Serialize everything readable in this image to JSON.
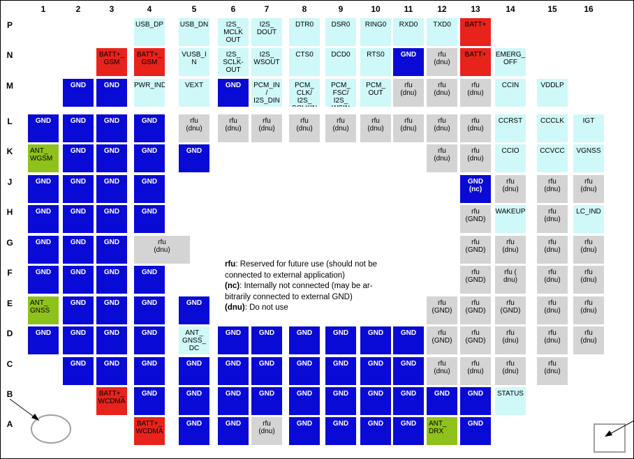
{
  "columns": [
    "1",
    "2",
    "3",
    "4",
    "5",
    "6",
    "7",
    "8",
    "9",
    "10",
    "11",
    "12",
    "13",
    "14",
    "15",
    "16"
  ],
  "rows": [
    "P",
    "N",
    "M",
    "L",
    "K",
    "J",
    "H",
    "G",
    "F",
    "E",
    "D",
    "C",
    "B",
    "A"
  ],
  "colors": {
    "gnd": "#0a0ad6",
    "batt": "#e8231b",
    "signal": "#cff8f8",
    "rfu": "#d4d4d4",
    "antenna": "#8ec21a"
  },
  "pads": [
    {
      "row": "P",
      "col": 4,
      "type": "sig",
      "label": "USB_DP"
    },
    {
      "row": "P",
      "col": 5,
      "type": "sig",
      "label": "USB_DN"
    },
    {
      "row": "P",
      "col": 6,
      "type": "sig",
      "label": "I2S_\nMCLK\nOUT"
    },
    {
      "row": "P",
      "col": 7,
      "type": "sig",
      "label": "I2S_\nDOUT"
    },
    {
      "row": "P",
      "col": 8,
      "type": "sig",
      "label": "DTR0"
    },
    {
      "row": "P",
      "col": 9,
      "type": "sig",
      "label": "DSR0"
    },
    {
      "row": "P",
      "col": 10,
      "type": "sig",
      "label": "RING0"
    },
    {
      "row": "P",
      "col": 11,
      "type": "sig",
      "label": "RXD0"
    },
    {
      "row": "P",
      "col": 12,
      "type": "sig",
      "label": "TXD0"
    },
    {
      "row": "P",
      "col": 13,
      "type": "batt",
      "label": "BATT+"
    },
    {
      "row": "N",
      "col": 3,
      "type": "batt",
      "label": "BATT+_\nGSM"
    },
    {
      "row": "N",
      "col": 4,
      "type": "batt",
      "label": "BATT+_\nGSM"
    },
    {
      "row": "N",
      "col": 5,
      "type": "sig",
      "label": "VUSB_I\nN"
    },
    {
      "row": "N",
      "col": 6,
      "type": "sig",
      "label": "I2S_\nSCLK-\nOUT"
    },
    {
      "row": "N",
      "col": 7,
      "type": "sig",
      "label": "I2S_\nWSOUT"
    },
    {
      "row": "N",
      "col": 8,
      "type": "sig",
      "label": "CTS0"
    },
    {
      "row": "N",
      "col": 9,
      "type": "sig",
      "label": "DCD0"
    },
    {
      "row": "N",
      "col": 10,
      "type": "sig",
      "label": "RTS0"
    },
    {
      "row": "N",
      "col": 11,
      "type": "gnd",
      "label": "GND"
    },
    {
      "row": "N",
      "col": 12,
      "type": "rfu",
      "label": "rfu\n(dnu)"
    },
    {
      "row": "N",
      "col": 13,
      "type": "batt",
      "label": "BATT+"
    },
    {
      "row": "N",
      "col": 14,
      "type": "sig",
      "label": "EMERG_\nOFF"
    },
    {
      "row": "M",
      "col": 2,
      "type": "gnd",
      "label": "GND"
    },
    {
      "row": "M",
      "col": 3,
      "type": "gnd",
      "label": "GND"
    },
    {
      "row": "M",
      "col": 4,
      "type": "sig",
      "label": "PWR_IND"
    },
    {
      "row": "M",
      "col": 5,
      "type": "sig",
      "label": "VEXT"
    },
    {
      "row": "M",
      "col": 6,
      "type": "gnd",
      "label": "GND"
    },
    {
      "row": "M",
      "col": 7,
      "type": "sig",
      "label": "PCM_IN\n/\nI2S_DIN"
    },
    {
      "row": "M",
      "col": 8,
      "type": "sig",
      "label": "PCM_\nCLK/\nI2S_\nSCLKIN"
    },
    {
      "row": "M",
      "col": 9,
      "type": "sig",
      "label": "PCM_\nFSC/\nI2S_\nWSIN"
    },
    {
      "row": "M",
      "col": 10,
      "type": "sig",
      "label": "PCM_\nOUT"
    },
    {
      "row": "M",
      "col": 11,
      "type": "rfu",
      "label": "rfu\n(dnu)"
    },
    {
      "row": "M",
      "col": 12,
      "type": "rfu",
      "label": "rfu\n(dnu)"
    },
    {
      "row": "M",
      "col": 13,
      "type": "rfu",
      "label": "rfu\n(dnu)"
    },
    {
      "row": "M",
      "col": 14,
      "type": "sig",
      "label": "CCIN"
    },
    {
      "row": "M",
      "col": 15,
      "type": "sig",
      "label": "VDDLP"
    },
    {
      "row": "L",
      "col": 1,
      "type": "gnd",
      "label": "GND"
    },
    {
      "row": "L",
      "col": 2,
      "type": "gnd",
      "label": "GND"
    },
    {
      "row": "L",
      "col": 3,
      "type": "gnd",
      "label": "GND"
    },
    {
      "row": "L",
      "col": 4,
      "type": "gnd",
      "label": "GND"
    },
    {
      "row": "L",
      "col": 5,
      "type": "rfu",
      "label": "rfu\n(dnu)"
    },
    {
      "row": "L",
      "col": 6,
      "type": "rfu",
      "label": "rfu\n(dnu)"
    },
    {
      "row": "L",
      "col": 7,
      "type": "rfu",
      "label": "rfu\n(dnu)"
    },
    {
      "row": "L",
      "col": 8,
      "type": "rfu",
      "label": "rfu\n(dnu)"
    },
    {
      "row": "L",
      "col": 9,
      "type": "rfu",
      "label": "rfu\n(dnu)"
    },
    {
      "row": "L",
      "col": 10,
      "type": "rfu",
      "label": "rfu\n(dnu)"
    },
    {
      "row": "L",
      "col": 11,
      "type": "rfu",
      "label": "rfu\n(dnu)"
    },
    {
      "row": "L",
      "col": 12,
      "type": "rfu",
      "label": "rfu\n(dnu)"
    },
    {
      "row": "L",
      "col": 13,
      "type": "rfu",
      "label": "rfu\n(dnu)"
    },
    {
      "row": "L",
      "col": 14,
      "type": "sig",
      "label": "CCRST"
    },
    {
      "row": "L",
      "col": 15,
      "type": "sig",
      "label": "CCCLK"
    },
    {
      "row": "L",
      "col": 16,
      "type": "sig",
      "label": "IGT"
    },
    {
      "row": "K",
      "col": 1,
      "type": "ant",
      "label": "ANT_\nWGSM"
    },
    {
      "row": "K",
      "col": 2,
      "type": "gnd",
      "label": "GND"
    },
    {
      "row": "K",
      "col": 3,
      "type": "gnd",
      "label": "GND"
    },
    {
      "row": "K",
      "col": 4,
      "type": "gnd",
      "label": "GND"
    },
    {
      "row": "K",
      "col": 5,
      "type": "gnd",
      "label": "GND"
    },
    {
      "row": "K",
      "col": 12,
      "type": "rfu",
      "label": "rfu\n(dnu)"
    },
    {
      "row": "K",
      "col": 13,
      "type": "rfu",
      "label": "rfu\n(dnu)"
    },
    {
      "row": "K",
      "col": 14,
      "type": "sig",
      "label": "CCIO"
    },
    {
      "row": "K",
      "col": 15,
      "type": "sig",
      "label": "CCVCC"
    },
    {
      "row": "K",
      "col": 16,
      "type": "sig",
      "label": "VGNSS"
    },
    {
      "row": "J",
      "col": 1,
      "type": "gnd",
      "label": "GND"
    },
    {
      "row": "J",
      "col": 2,
      "type": "gnd",
      "label": "GND"
    },
    {
      "row": "J",
      "col": 3,
      "type": "gnd",
      "label": "GND"
    },
    {
      "row": "J",
      "col": 4,
      "type": "gnd",
      "label": "GND"
    },
    {
      "row": "J",
      "col": 13,
      "type": "gnd",
      "label": "GND\n(nc)"
    },
    {
      "row": "J",
      "col": 14,
      "type": "rfu",
      "label": "rfu\n(dnu)"
    },
    {
      "row": "J",
      "col": 15,
      "type": "rfu",
      "label": "rfu\n(dnu)"
    },
    {
      "row": "J",
      "col": 16,
      "type": "rfu",
      "label": "rfu\n(dnu)"
    },
    {
      "row": "H",
      "col": 1,
      "type": "gnd",
      "label": "GND"
    },
    {
      "row": "H",
      "col": 2,
      "type": "gnd",
      "label": "GND"
    },
    {
      "row": "H",
      "col": 3,
      "type": "gnd",
      "label": "GND"
    },
    {
      "row": "H",
      "col": 4,
      "type": "gnd",
      "label": "GND"
    },
    {
      "row": "H",
      "col": 13,
      "type": "rfu",
      "label": "rfu\n(GND)"
    },
    {
      "row": "H",
      "col": 14,
      "type": "sig",
      "label": "WAKEUP"
    },
    {
      "row": "H",
      "col": 15,
      "type": "rfu",
      "label": "rfu\n(dnu)"
    },
    {
      "row": "H",
      "col": 16,
      "type": "sig",
      "label": "LC_IND"
    },
    {
      "row": "G",
      "col": 1,
      "type": "gnd",
      "label": "GND"
    },
    {
      "row": "G",
      "col": 2,
      "type": "gnd",
      "label": "GND"
    },
    {
      "row": "G",
      "col": 3,
      "type": "gnd",
      "label": "GND"
    },
    {
      "row": "G",
      "col": 4,
      "type": "rfu",
      "label": "rfu\n(dnu)",
      "wide": true
    },
    {
      "row": "G",
      "col": 13,
      "type": "rfu",
      "label": "rfu\n(GND)"
    },
    {
      "row": "G",
      "col": 14,
      "type": "rfu",
      "label": "rfu\n(dnu)"
    },
    {
      "row": "G",
      "col": 15,
      "type": "rfu",
      "label": "rfu\n(dnu)"
    },
    {
      "row": "G",
      "col": 16,
      "type": "rfu",
      "label": "rfu\n(dnu)"
    },
    {
      "row": "F",
      "col": 1,
      "type": "gnd",
      "label": "GND"
    },
    {
      "row": "F",
      "col": 2,
      "type": "gnd",
      "label": "GND"
    },
    {
      "row": "F",
      "col": 3,
      "type": "gnd",
      "label": "GND"
    },
    {
      "row": "F",
      "col": 4,
      "type": "gnd",
      "label": "GND"
    },
    {
      "row": "F",
      "col": 13,
      "type": "rfu",
      "label": "rfu\n(GND)"
    },
    {
      "row": "F",
      "col": 14,
      "type": "rfu",
      "label": "rfu (\ndnu)"
    },
    {
      "row": "F",
      "col": 15,
      "type": "rfu",
      "label": "rfu\n(dnu)"
    },
    {
      "row": "F",
      "col": 16,
      "type": "rfu",
      "label": "rfu\n(dnu)"
    },
    {
      "row": "E",
      "col": 1,
      "type": "ant",
      "label": "ANT_\nGNSS"
    },
    {
      "row": "E",
      "col": 2,
      "type": "gnd",
      "label": "GND"
    },
    {
      "row": "E",
      "col": 3,
      "type": "gnd",
      "label": "GND"
    },
    {
      "row": "E",
      "col": 4,
      "type": "gnd",
      "label": "GND"
    },
    {
      "row": "E",
      "col": 5,
      "type": "gnd",
      "label": "GND"
    },
    {
      "row": "E",
      "col": 12,
      "type": "rfu",
      "label": "rfu\n(GND)"
    },
    {
      "row": "E",
      "col": 13,
      "type": "rfu",
      "label": "rfu\n(GND)"
    },
    {
      "row": "E",
      "col": 14,
      "type": "rfu",
      "label": "rfu\n(GND)"
    },
    {
      "row": "E",
      "col": 15,
      "type": "rfu",
      "label": "rfu\n(dnu)"
    },
    {
      "row": "E",
      "col": 16,
      "type": "rfu",
      "label": "rfu\n(dnu)"
    },
    {
      "row": "D",
      "col": 1,
      "type": "gnd",
      "label": "GND"
    },
    {
      "row": "D",
      "col": 2,
      "type": "gnd",
      "label": "GND"
    },
    {
      "row": "D",
      "col": 3,
      "type": "gnd",
      "label": "GND"
    },
    {
      "row": "D",
      "col": 4,
      "type": "gnd",
      "label": "GND"
    },
    {
      "row": "D",
      "col": 5,
      "type": "sig",
      "label": "ANT_\nGNSS_\nDC"
    },
    {
      "row": "D",
      "col": 6,
      "type": "gnd",
      "label": "GND"
    },
    {
      "row": "D",
      "col": 7,
      "type": "gnd",
      "label": "GND"
    },
    {
      "row": "D",
      "col": 8,
      "type": "gnd",
      "label": "GND"
    },
    {
      "row": "D",
      "col": 9,
      "type": "gnd",
      "label": "GND"
    },
    {
      "row": "D",
      "col": 10,
      "type": "gnd",
      "label": "GND"
    },
    {
      "row": "D",
      "col": 11,
      "type": "gnd",
      "label": "GND"
    },
    {
      "row": "D",
      "col": 12,
      "type": "rfu",
      "label": "rfu\n(GND)"
    },
    {
      "row": "D",
      "col": 13,
      "type": "rfu",
      "label": "rfu\n(GND)"
    },
    {
      "row": "D",
      "col": 14,
      "type": "rfu",
      "label": "rfu\n(dnu)"
    },
    {
      "row": "D",
      "col": 15,
      "type": "rfu",
      "label": "rfu\n(dnu)"
    },
    {
      "row": "D",
      "col": 16,
      "type": "rfu",
      "label": "rfu\n(dnu)"
    },
    {
      "row": "C",
      "col": 2,
      "type": "gnd",
      "label": "GND"
    },
    {
      "row": "C",
      "col": 3,
      "type": "gnd",
      "label": "GND"
    },
    {
      "row": "C",
      "col": 4,
      "type": "gnd",
      "label": "GND"
    },
    {
      "row": "C",
      "col": 5,
      "type": "gnd",
      "label": "GND"
    },
    {
      "row": "C",
      "col": 6,
      "type": "gnd",
      "label": "GND"
    },
    {
      "row": "C",
      "col": 7,
      "type": "gnd",
      "label": "GND"
    },
    {
      "row": "C",
      "col": 8,
      "type": "gnd",
      "label": "GND"
    },
    {
      "row": "C",
      "col": 9,
      "type": "gnd",
      "label": "GND"
    },
    {
      "row": "C",
      "col": 10,
      "type": "gnd",
      "label": "GND"
    },
    {
      "row": "C",
      "col": 11,
      "type": "gnd",
      "label": "GND"
    },
    {
      "row": "C",
      "col": 12,
      "type": "rfu",
      "label": "rfu\n(dnu)"
    },
    {
      "row": "C",
      "col": 13,
      "type": "rfu",
      "label": "rfu\n(dnu)"
    },
    {
      "row": "C",
      "col": 14,
      "type": "rfu",
      "label": "rfu\n(dnu)"
    },
    {
      "row": "C",
      "col": 15,
      "type": "rfu",
      "label": "rfu\n(dnu)"
    },
    {
      "row": "B",
      "col": 3,
      "type": "batt",
      "label": "BATT+_\nWCDMA"
    },
    {
      "row": "B",
      "col": 4,
      "type": "gnd",
      "label": "GND"
    },
    {
      "row": "B",
      "col": 5,
      "type": "gnd",
      "label": "GND"
    },
    {
      "row": "B",
      "col": 6,
      "type": "gnd",
      "label": "GND"
    },
    {
      "row": "B",
      "col": 7,
      "type": "gnd",
      "label": "GND"
    },
    {
      "row": "B",
      "col": 8,
      "type": "gnd",
      "label": "GND"
    },
    {
      "row": "B",
      "col": 9,
      "type": "gnd",
      "label": "GND"
    },
    {
      "row": "B",
      "col": 10,
      "type": "gnd",
      "label": "GND"
    },
    {
      "row": "B",
      "col": 11,
      "type": "gnd",
      "label": "GND"
    },
    {
      "row": "B",
      "col": 12,
      "type": "gnd",
      "label": "GND"
    },
    {
      "row": "B",
      "col": 13,
      "type": "gnd",
      "label": "GND"
    },
    {
      "row": "B",
      "col": 14,
      "type": "sig",
      "label": "STATUS"
    },
    {
      "row": "A",
      "col": 4,
      "type": "batt",
      "label": "BATT+_\nWCDMA"
    },
    {
      "row": "A",
      "col": 5,
      "type": "gnd",
      "label": "GND"
    },
    {
      "row": "A",
      "col": 6,
      "type": "gnd",
      "label": "GND"
    },
    {
      "row": "A",
      "col": 7,
      "type": "rfu",
      "label": "rfu\n(dnu)"
    },
    {
      "row": "A",
      "col": 8,
      "type": "gnd",
      "label": "GND"
    },
    {
      "row": "A",
      "col": 9,
      "type": "gnd",
      "label": "GND"
    },
    {
      "row": "A",
      "col": 10,
      "type": "gnd",
      "label": "GND"
    },
    {
      "row": "A",
      "col": 11,
      "type": "gnd",
      "label": "GND"
    },
    {
      "row": "A",
      "col": 12,
      "type": "ant",
      "label": "ANT_\nDRX"
    },
    {
      "row": "A",
      "col": 13,
      "type": "gnd",
      "label": "GND"
    }
  ],
  "legend": [
    {
      "term": "rfu",
      "text": ": Reserved for future use (should not be connected to external application)"
    },
    {
      "term": "(nc)",
      "text": ": Internally not connected (may be ar-bitrarily connected to external GND)"
    },
    {
      "term": "(dnu)",
      "text": ": Do not use"
    }
  ]
}
